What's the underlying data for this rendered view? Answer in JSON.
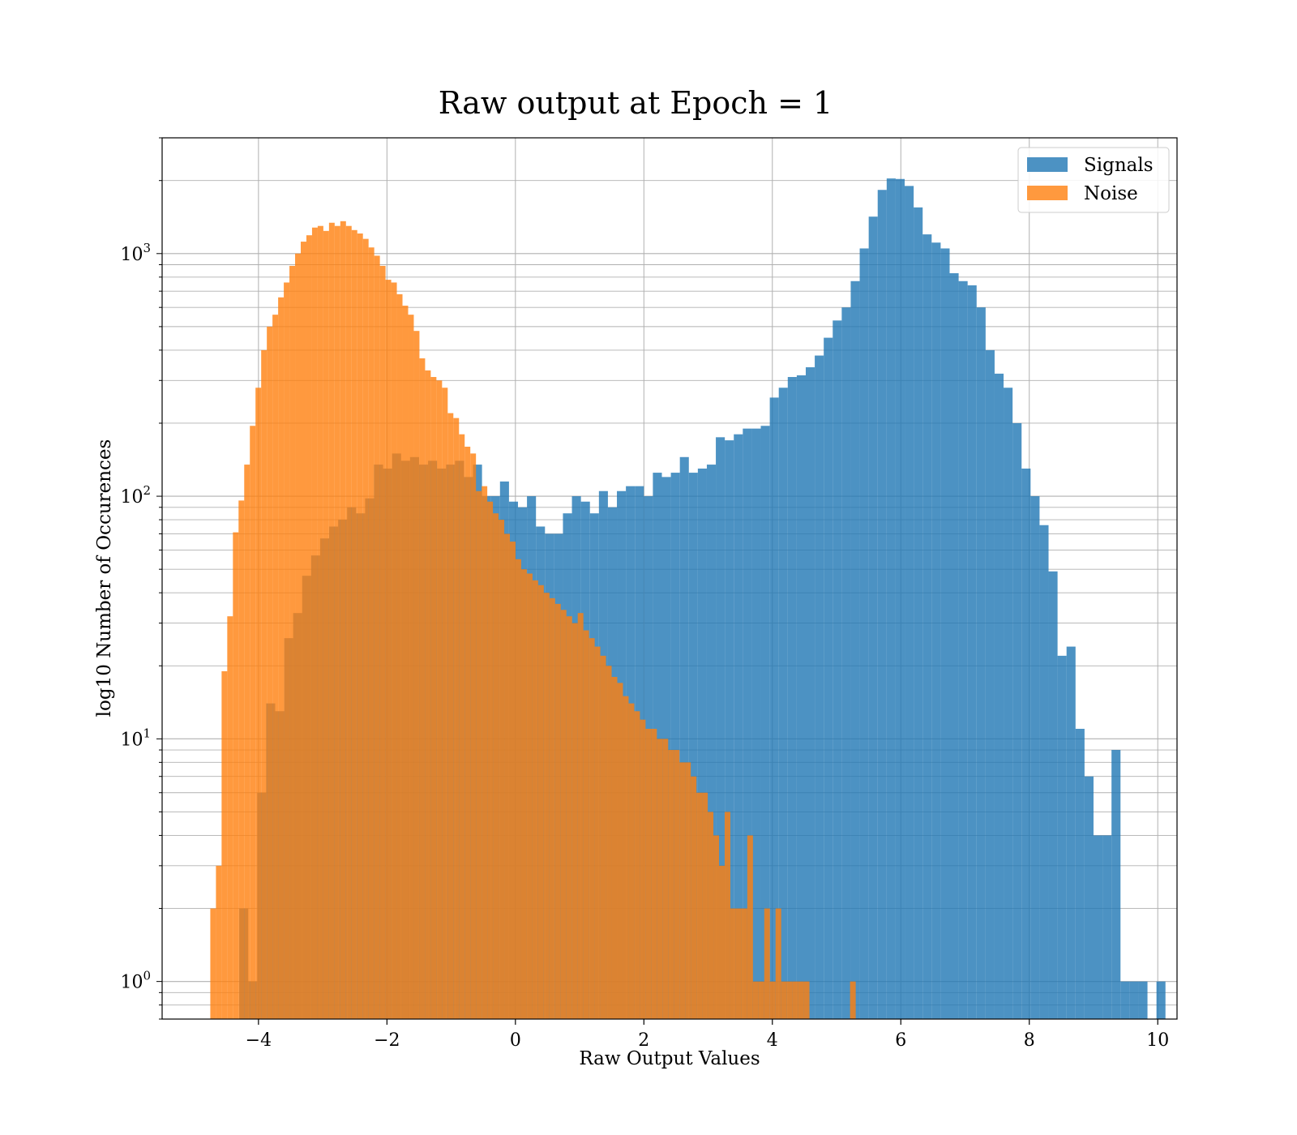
{
  "chart_data": {
    "type": "bar",
    "subtype": "overlapping-histogram",
    "title": "Raw output at Epoch = 1",
    "xlabel": "Raw Output Values",
    "ylabel": "log10 Number of Occurences",
    "xlim": [
      -5.5,
      10.3
    ],
    "ylim": [
      0.7,
      3000
    ],
    "yscale": "log",
    "grid": "both",
    "legend_position": "top-right",
    "x_ticks": [
      -4,
      -2,
      0,
      2,
      4,
      6,
      8,
      10
    ],
    "x_tick_labels": [
      "−4",
      "−2",
      "0",
      "2",
      "4",
      "6",
      "8",
      "10"
    ],
    "y_ticks": [
      1,
      10,
      100,
      1000
    ],
    "y_tick_labels": [
      {
        "base": "10",
        "exp": "0"
      },
      {
        "base": "10",
        "exp": "1"
      },
      {
        "base": "10",
        "exp": "2"
      },
      {
        "base": "10",
        "exp": "3"
      }
    ],
    "series": [
      {
        "name": "Signals",
        "color": "#1f77b4",
        "opacity": 0.8,
        "bin_width": 0.14,
        "bins": [
          [
            -4.3,
            2
          ],
          [
            -4.16,
            1
          ],
          [
            -4.02,
            6
          ],
          [
            -3.88,
            14
          ],
          [
            -3.74,
            13
          ],
          [
            -3.6,
            26
          ],
          [
            -3.46,
            33
          ],
          [
            -3.32,
            47
          ],
          [
            -3.18,
            57
          ],
          [
            -3.04,
            67
          ],
          [
            -2.9,
            75
          ],
          [
            -2.76,
            80
          ],
          [
            -2.62,
            90
          ],
          [
            -2.48,
            85
          ],
          [
            -2.34,
            98
          ],
          [
            -2.2,
            135
          ],
          [
            -2.06,
            130
          ],
          [
            -1.92,
            150
          ],
          [
            -1.78,
            140
          ],
          [
            -1.64,
            145
          ],
          [
            -1.5,
            135
          ],
          [
            -1.36,
            140
          ],
          [
            -1.22,
            130
          ],
          [
            -1.08,
            135
          ],
          [
            -0.94,
            140
          ],
          [
            -0.8,
            120
          ],
          [
            -0.66,
            135
          ],
          [
            -0.52,
            100
          ],
          [
            -0.38,
            100
          ],
          [
            -0.24,
            115
          ],
          [
            -0.1,
            95
          ],
          [
            0.04,
            90
          ],
          [
            0.18,
            100
          ],
          [
            0.32,
            75
          ],
          [
            0.46,
            70
          ],
          [
            0.6,
            70
          ],
          [
            0.74,
            85
          ],
          [
            0.88,
            100
          ],
          [
            1.02,
            95
          ],
          [
            1.16,
            85
          ],
          [
            1.3,
            105
          ],
          [
            1.44,
            90
          ],
          [
            1.58,
            105
          ],
          [
            1.72,
            110
          ],
          [
            1.86,
            110
          ],
          [
            2.0,
            100
          ],
          [
            2.14,
            125
          ],
          [
            2.28,
            120
          ],
          [
            2.42,
            125
          ],
          [
            2.56,
            145
          ],
          [
            2.7,
            125
          ],
          [
            2.84,
            130
          ],
          [
            2.98,
            135
          ],
          [
            3.12,
            175
          ],
          [
            3.26,
            170
          ],
          [
            3.4,
            180
          ],
          [
            3.54,
            190
          ],
          [
            3.68,
            190
          ],
          [
            3.82,
            195
          ],
          [
            3.96,
            255
          ],
          [
            4.1,
            280
          ],
          [
            4.24,
            310
          ],
          [
            4.38,
            315
          ],
          [
            4.52,
            340
          ],
          [
            4.66,
            380
          ],
          [
            4.8,
            450
          ],
          [
            4.94,
            530
          ],
          [
            5.08,
            600
          ],
          [
            5.22,
            770
          ],
          [
            5.36,
            1050
          ],
          [
            5.5,
            1420
          ],
          [
            5.64,
            1830
          ],
          [
            5.78,
            2040
          ],
          [
            5.92,
            2030
          ],
          [
            6.06,
            1900
          ],
          [
            6.2,
            1550
          ],
          [
            6.34,
            1200
          ],
          [
            6.48,
            1110
          ],
          [
            6.62,
            1050
          ],
          [
            6.76,
            830
          ],
          [
            6.9,
            770
          ],
          [
            7.04,
            740
          ],
          [
            7.18,
            600
          ],
          [
            7.32,
            400
          ],
          [
            7.46,
            320
          ],
          [
            7.6,
            280
          ],
          [
            7.74,
            200
          ],
          [
            7.88,
            130
          ],
          [
            8.02,
            100
          ],
          [
            8.16,
            76
          ],
          [
            8.3,
            49
          ],
          [
            8.44,
            22
          ],
          [
            8.58,
            24
          ],
          [
            8.72,
            11
          ],
          [
            8.86,
            7
          ],
          [
            9.0,
            4
          ],
          [
            9.14,
            4
          ],
          [
            9.28,
            9
          ],
          [
            9.42,
            1
          ],
          [
            9.56,
            1
          ],
          [
            9.7,
            1
          ],
          [
            9.84,
            0
          ],
          [
            9.98,
            1
          ]
        ]
      },
      {
        "name": "Noise",
        "color": "#ff7f0e",
        "opacity": 0.8,
        "bin_width": 0.088,
        "bins": [
          [
            -4.75,
            2
          ],
          [
            -4.662,
            3
          ],
          [
            -4.574,
            19
          ],
          [
            -4.486,
            32
          ],
          [
            -4.398,
            71
          ],
          [
            -4.31,
            96
          ],
          [
            -4.222,
            135
          ],
          [
            -4.134,
            195
          ],
          [
            -4.046,
            280
          ],
          [
            -3.958,
            400
          ],
          [
            -3.87,
            500
          ],
          [
            -3.782,
            560
          ],
          [
            -3.694,
            660
          ],
          [
            -3.606,
            760
          ],
          [
            -3.518,
            890
          ],
          [
            -3.43,
            1000
          ],
          [
            -3.342,
            1120
          ],
          [
            -3.254,
            1190
          ],
          [
            -3.166,
            1280
          ],
          [
            -3.078,
            1300
          ],
          [
            -2.99,
            1240
          ],
          [
            -2.902,
            1340
          ],
          [
            -2.814,
            1300
          ],
          [
            -2.726,
            1360
          ],
          [
            -2.638,
            1300
          ],
          [
            -2.55,
            1250
          ],
          [
            -2.462,
            1210
          ],
          [
            -2.374,
            1150
          ],
          [
            -2.286,
            1060
          ],
          [
            -2.198,
            980
          ],
          [
            -2.11,
            890
          ],
          [
            -2.022,
            780
          ],
          [
            -1.934,
            760
          ],
          [
            -1.846,
            680
          ],
          [
            -1.758,
            610
          ],
          [
            -1.67,
            560
          ],
          [
            -1.582,
            480
          ],
          [
            -1.494,
            370
          ],
          [
            -1.406,
            330
          ],
          [
            -1.318,
            310
          ],
          [
            -1.23,
            300
          ],
          [
            -1.142,
            280
          ],
          [
            -1.054,
            220
          ],
          [
            -0.966,
            210
          ],
          [
            -0.878,
            180
          ],
          [
            -0.79,
            160
          ],
          [
            -0.702,
            150
          ],
          [
            -0.614,
            105
          ],
          [
            -0.526,
            110
          ],
          [
            -0.438,
            95
          ],
          [
            -0.35,
            85
          ],
          [
            -0.262,
            80
          ],
          [
            -0.174,
            70
          ],
          [
            -0.086,
            65
          ],
          [
            0.002,
            55
          ],
          [
            0.09,
            50
          ],
          [
            0.178,
            48
          ],
          [
            0.266,
            45
          ],
          [
            0.354,
            43
          ],
          [
            0.442,
            40
          ],
          [
            0.53,
            38
          ],
          [
            0.618,
            36
          ],
          [
            0.706,
            34
          ],
          [
            0.794,
            32
          ],
          [
            0.882,
            30
          ],
          [
            0.97,
            33
          ],
          [
            1.058,
            28
          ],
          [
            1.146,
            26
          ],
          [
            1.234,
            24
          ],
          [
            1.322,
            22
          ],
          [
            1.41,
            20
          ],
          [
            1.498,
            18
          ],
          [
            1.586,
            17
          ],
          [
            1.674,
            15
          ],
          [
            1.762,
            14
          ],
          [
            1.85,
            13
          ],
          [
            1.938,
            12
          ],
          [
            2.026,
            11
          ],
          [
            2.114,
            11
          ],
          [
            2.202,
            10
          ],
          [
            2.29,
            10
          ],
          [
            2.378,
            9
          ],
          [
            2.466,
            9
          ],
          [
            2.554,
            8
          ],
          [
            2.642,
            8
          ],
          [
            2.73,
            7
          ],
          [
            2.818,
            6
          ],
          [
            2.906,
            6
          ],
          [
            2.994,
            5
          ],
          [
            3.082,
            4
          ],
          [
            3.17,
            3
          ],
          [
            3.258,
            5
          ],
          [
            3.346,
            2
          ],
          [
            3.434,
            2
          ],
          [
            3.522,
            2
          ],
          [
            3.61,
            4
          ],
          [
            3.698,
            1
          ],
          [
            3.786,
            1
          ],
          [
            3.874,
            2
          ],
          [
            3.962,
            1
          ],
          [
            4.05,
            2
          ],
          [
            4.138,
            1
          ],
          [
            4.226,
            1
          ],
          [
            4.314,
            1
          ],
          [
            4.402,
            1
          ],
          [
            4.49,
            1
          ],
          [
            4.578,
            0
          ],
          [
            4.666,
            0
          ],
          [
            5.21,
            1
          ]
        ]
      }
    ]
  }
}
